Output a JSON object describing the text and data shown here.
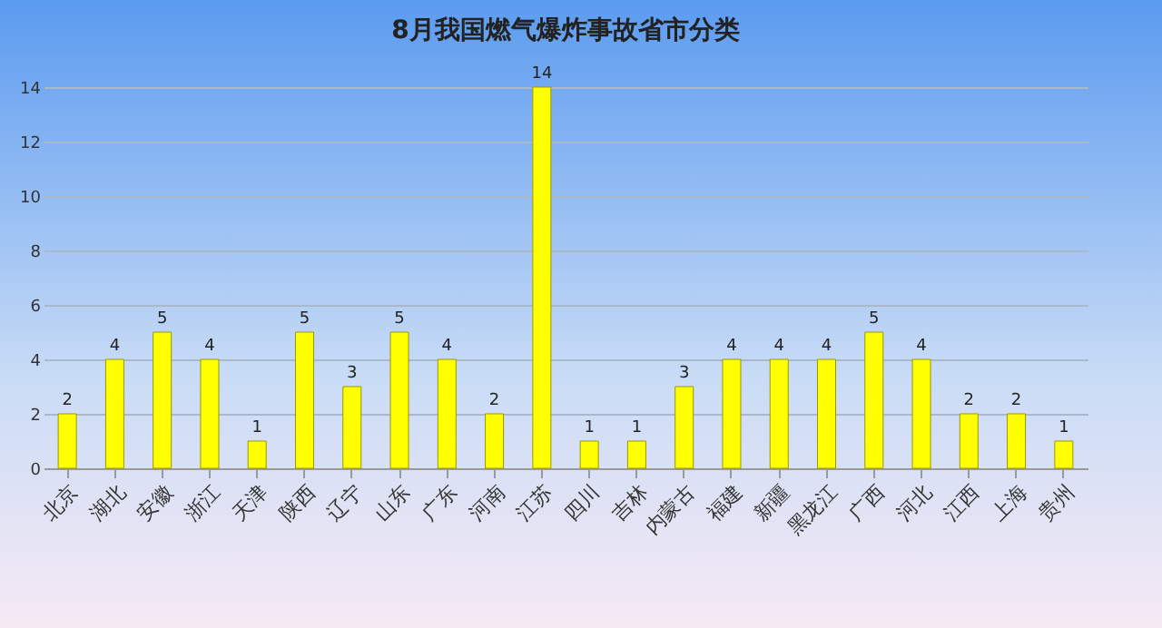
{
  "chart_data": {
    "type": "bar",
    "title": "8月我国燃气爆炸事故省市分类",
    "categories": [
      "北京",
      "湖北",
      "安徽",
      "浙江",
      "天津",
      "陕西",
      "辽宁",
      "山东",
      "广东",
      "河南",
      "江苏",
      "四川",
      "吉林",
      "内蒙古",
      "福建",
      "新疆",
      "黑龙江",
      "广西",
      "河北",
      "江西",
      "上海",
      "贵州"
    ],
    "values": [
      2,
      4,
      5,
      4,
      1,
      5,
      3,
      5,
      4,
      2,
      14,
      1,
      1,
      3,
      4,
      4,
      4,
      5,
      4,
      2,
      2,
      1
    ],
    "color": "#ffff00",
    "ylim": [
      0,
      14
    ],
    "yticks": [
      0,
      2,
      4,
      6,
      8,
      10,
      12,
      14
    ],
    "grid": "y",
    "data_labels": true
  }
}
